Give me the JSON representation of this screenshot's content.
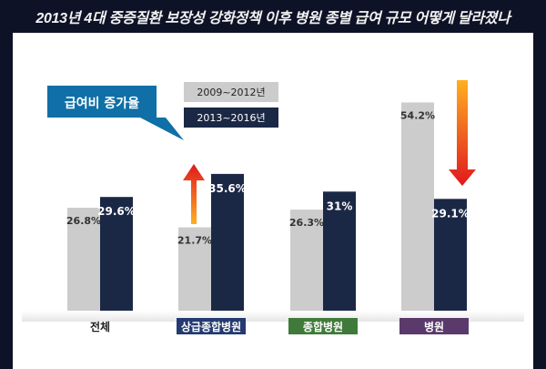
{
  "header": {
    "title": "2013년 4대 중증질환 보장성 강화정책 이후 병원 종별 급여 규모 어떻게 달라졌나"
  },
  "callout": {
    "label": "급여비 증가율"
  },
  "colors": {
    "series1": "#cccccc",
    "series2": "#1b2845",
    "callout": "#0f6fa6",
    "cat_general_bg": "#243a70",
    "cat_hospital_bg": "#5a3a6a",
    "cat_combined_bg": "#3f7a3a",
    "arrow_top": "#ffb020",
    "arrow_bottom": "#e0181f"
  },
  "chart_data": {
    "type": "bar",
    "title": "2013년 4대 중증질환 보장성 강화정책 이후 병원 종별 급여 규모 어떻게 달라졌나",
    "ylabel": "급여비 증가율",
    "xlabel": "",
    "ylim": [
      0,
      60
    ],
    "categories": [
      "전체",
      "상급종합병원",
      "종합병원",
      "병원"
    ],
    "series": [
      {
        "name": "2009~2012년",
        "values": [
          26.8,
          21.7,
          26.3,
          54.2
        ],
        "labels": [
          "26.8%",
          "21.7%",
          "26.3%",
          "54.2%"
        ]
      },
      {
        "name": "2013~2016년",
        "values": [
          29.6,
          35.6,
          31,
          29.1
        ],
        "labels": [
          "29.6%",
          "35.6%",
          "31%",
          "29.1%"
        ]
      }
    ],
    "legend": "top-left",
    "annotations": [
      {
        "category": "상급종합병원",
        "direction": "up"
      },
      {
        "category": "병원",
        "direction": "down"
      }
    ]
  }
}
